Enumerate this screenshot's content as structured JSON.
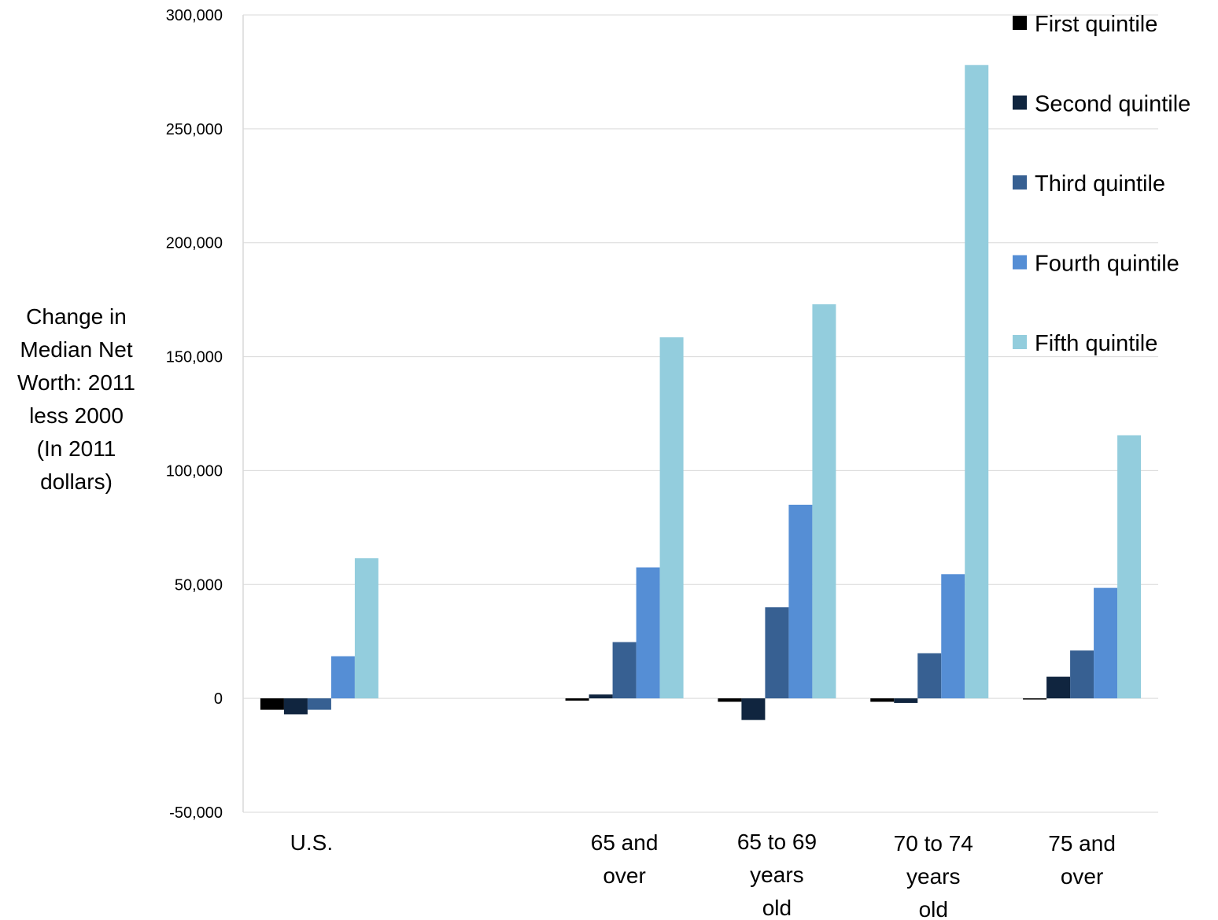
{
  "chart_data": {
    "type": "bar",
    "ylabel": [
      "Change in",
      "Median Net",
      "Worth: 2011",
      "less 2000",
      "(In 2011",
      "dollars)"
    ],
    "ylim": [
      -50000,
      300000
    ],
    "yticks": [
      -50000,
      0,
      50000,
      100000,
      150000,
      200000,
      250000,
      300000
    ],
    "ytick_labels": [
      "-50,000",
      "0",
      "50,000",
      "100,000",
      "150,000",
      "200,000",
      "250,000",
      "300,000"
    ],
    "grid": true,
    "legend_position": "top-right",
    "categories": [
      [
        "U.S."
      ],
      [],
      [
        "65 and",
        "over"
      ],
      [
        "65 to 69",
        "years",
        "old"
      ],
      [
        "70 to 74",
        "years",
        "old"
      ],
      [
        "75 and",
        "over"
      ]
    ],
    "series": [
      {
        "name": "First quintile",
        "color": "#000000",
        "values": [
          -5000,
          null,
          -1000,
          -1500,
          -1500,
          -500
        ]
      },
      {
        "name": "Second quintile",
        "color": "#10253f",
        "values": [
          -7000,
          null,
          1700,
          -9500,
          -2000,
          9500
        ]
      },
      {
        "name": "Third quintile",
        "color": "#376092",
        "values": [
          -5000,
          null,
          24700,
          40000,
          19800,
          21000
        ]
      },
      {
        "name": "Fourth quintile",
        "color": "#558ed5",
        "values": [
          18500,
          null,
          57500,
          85000,
          54500,
          48500
        ]
      },
      {
        "name": "Fifth quintile",
        "color": "#93cddd",
        "values": [
          61500,
          null,
          158500,
          173000,
          278000,
          115500
        ]
      }
    ]
  }
}
